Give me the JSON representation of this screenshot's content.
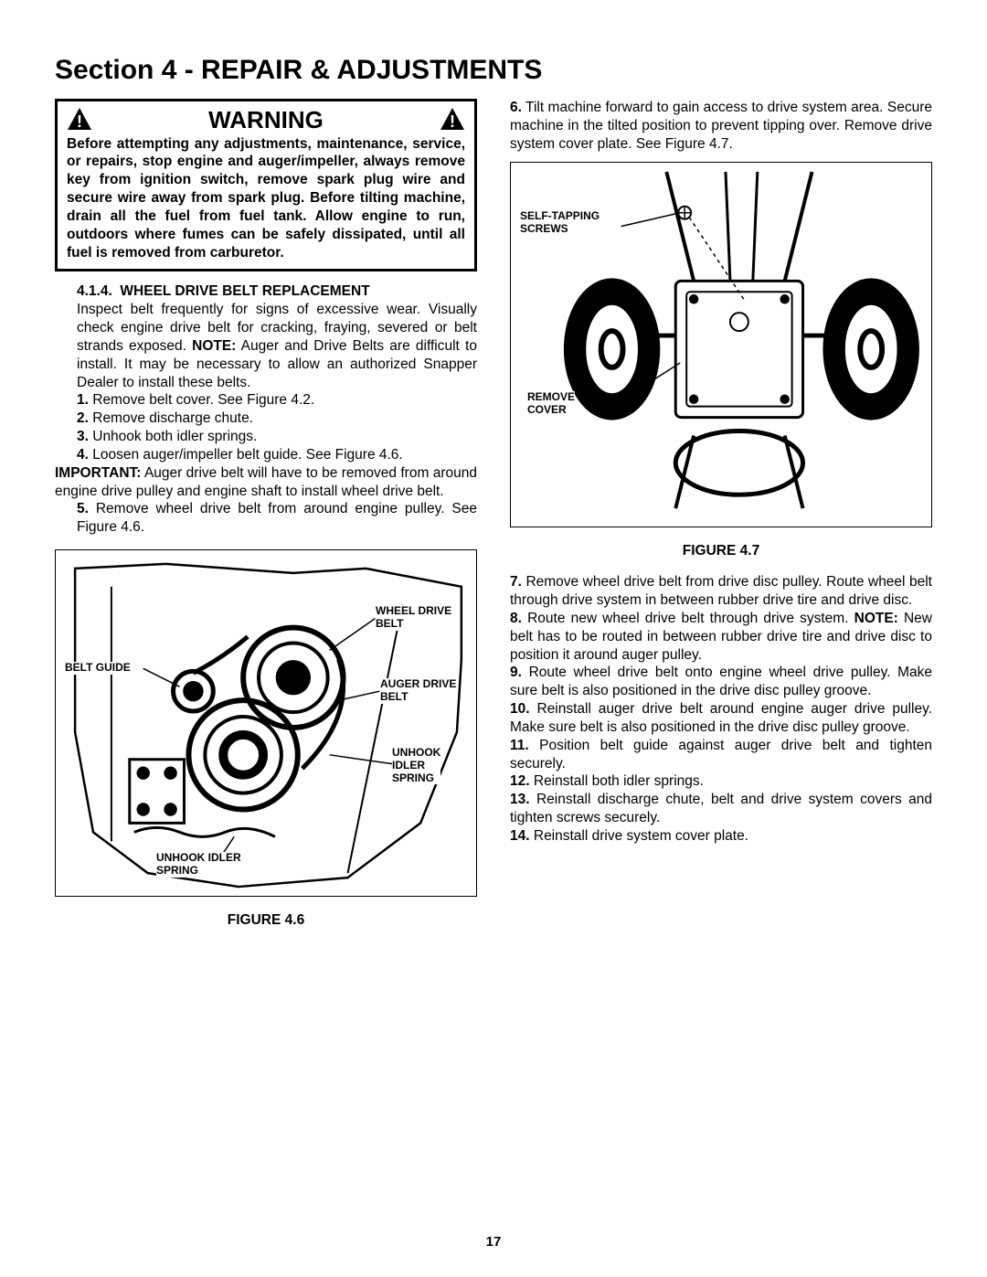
{
  "section_title": "Section 4 - REPAIR & ADJUSTMENTS",
  "warning": {
    "title": "WARNING",
    "body": "Before attempting any adjustments, maintenance, service, or repairs, stop engine and auger/impeller, always remove key from ignition switch, remove spark plug wire and secure wire away from spark plug. Before tilting machine, drain all the fuel from fuel tank. Allow engine to run, outdoors where fumes can be safely dissipated, until all fuel is removed from carburetor."
  },
  "subsection": {
    "number": "4.1.4.",
    "title": "WHEEL DRIVE BELT REPLACEMENT",
    "intro": "Inspect belt frequently for signs of excessive wear. Visually check engine drive belt for cracking, fraying, severed or belt strands exposed. ",
    "note_label": "NOTE:",
    "note_text": " Auger and Drive Belts are difficult to install. It may be necessary to allow an authorized Snapper Dealer to install these belts."
  },
  "steps_col1_a": [
    {
      "n": "1.",
      "t": " Remove belt cover. See Figure 4.2."
    },
    {
      "n": "2.",
      "t": " Remove discharge chute."
    },
    {
      "n": "3.",
      "t": " Unhook both idler springs."
    },
    {
      "n": "4.",
      "t": " Loosen auger/impeller belt guide. See Figure 4.6."
    }
  ],
  "important_label": "IMPORTANT:",
  "important_text": " Auger drive belt will have to be removed from around engine drive pulley and engine shaft to install wheel drive belt.",
  "step5": {
    "n": "5.",
    "t": " Remove wheel drive belt from around engine pulley. See Figure 4.6."
  },
  "figure46": {
    "caption": "FIGURE 4.6",
    "labels": {
      "wheel_drive_belt": "WHEEL DRIVE\nBELT",
      "belt_guide": "BELT GUIDE",
      "auger_drive_belt": "AUGER DRIVE\nBELT",
      "unhook_idler_spring_r": "UNHOOK\nIDLER\nSPRING",
      "unhook_idler_spring_b": "UNHOOK IDLER\nSPRING"
    }
  },
  "step6": {
    "n": "6.",
    "t": " Tilt machine forward to gain access to drive system area. Secure machine in the tilted position to prevent tipping over. Remove drive system cover plate. See Figure 4.7."
  },
  "figure47": {
    "caption": "FIGURE 4.7",
    "labels": {
      "self_tapping": "SELF-TAPPING\nSCREWS",
      "remove_cover": "REMOVE\nCOVER"
    }
  },
  "steps_col2": [
    {
      "n": "7.",
      "t": " Remove wheel drive belt from drive disc pulley. Route wheel belt through drive system in between rubber drive tire and drive disc."
    },
    {
      "n": "8.",
      "t": " Route new wheel drive belt through drive system. ",
      "note_label": "NOTE:",
      "note_after": " New belt has to be routed in between rubber drive tire and drive disc to position it around auger pulley."
    },
    {
      "n": "9.",
      "t": " Route wheel drive belt onto engine wheel drive pulley. Make sure belt is also positioned in the drive disc pulley groove."
    },
    {
      "n": "10.",
      "t": " Reinstall auger drive belt around engine auger drive pulley. Make sure belt is also positioned in the drive disc pulley groove."
    },
    {
      "n": "11.",
      "t": " Position belt guide against auger drive belt and tighten securely."
    },
    {
      "n": "12.",
      "t": " Reinstall both idler springs."
    },
    {
      "n": "13.",
      "t": " Reinstall discharge chute, belt and drive system covers and tighten screws securely."
    },
    {
      "n": "14.",
      "t": " Reinstall drive system cover plate."
    }
  ],
  "page_number": "17"
}
